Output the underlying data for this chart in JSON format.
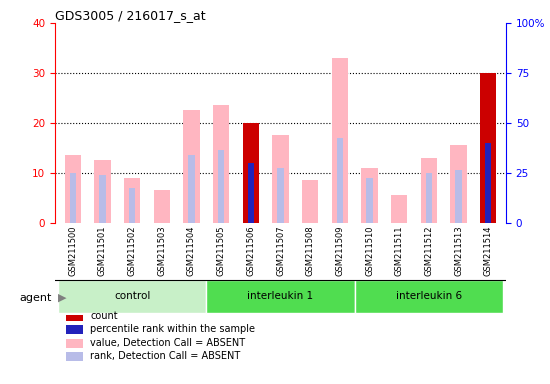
{
  "title": "GDS3005 / 216017_s_at",
  "samples": [
    "GSM211500",
    "GSM211501",
    "GSM211502",
    "GSM211503",
    "GSM211504",
    "GSM211505",
    "GSM211506",
    "GSM211507",
    "GSM211508",
    "GSM211509",
    "GSM211510",
    "GSM211511",
    "GSM211512",
    "GSM211513",
    "GSM211514"
  ],
  "value_absent": [
    13.5,
    12.5,
    9.0,
    6.5,
    22.5,
    23.5,
    null,
    17.5,
    8.5,
    33.0,
    11.0,
    5.5,
    13.0,
    15.5,
    null
  ],
  "rank_absent": [
    10.0,
    9.5,
    7.0,
    null,
    13.5,
    14.5,
    null,
    11.0,
    null,
    17.0,
    9.0,
    null,
    10.0,
    10.5,
    null
  ],
  "count_present": [
    null,
    null,
    null,
    null,
    null,
    null,
    20.0,
    null,
    null,
    null,
    null,
    null,
    null,
    null,
    30.0
  ],
  "percentile_present": [
    null,
    null,
    null,
    null,
    null,
    null,
    12.0,
    null,
    null,
    null,
    null,
    null,
    null,
    null,
    16.0
  ],
  "groups": {
    "control": [
      0,
      1,
      2,
      3,
      4
    ],
    "interleukin 1": [
      5,
      6,
      7,
      8,
      9
    ],
    "interleukin 6": [
      10,
      11,
      12,
      13,
      14
    ]
  },
  "ylim_left": [
    0,
    40
  ],
  "ylim_right": [
    0,
    100
  ],
  "yticks_left": [
    0,
    10,
    20,
    30,
    40
  ],
  "yticks_right": [
    0,
    25,
    50,
    75,
    100
  ],
  "yticklabels_right": [
    "0",
    "25",
    "50",
    "75",
    "100%"
  ],
  "color_count": "#cc0000",
  "color_percentile": "#2222bb",
  "color_value_absent": "#ffb6c1",
  "color_rank_absent": "#b8bce8",
  "bar_width": 0.55,
  "bg_plot": "#ffffff",
  "group_colors": [
    "#c8f0c8",
    "#50dd50",
    "#50dd50"
  ],
  "agent_label": "agent"
}
